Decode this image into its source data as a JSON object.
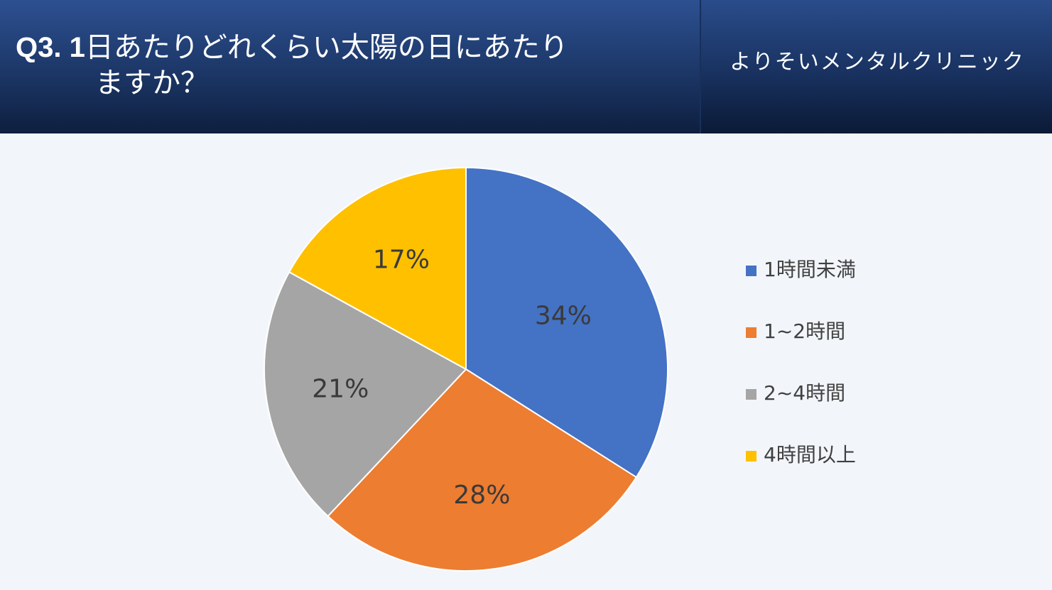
{
  "header": {
    "title_number": "Q3. 1",
    "title_line1": "日あたりどれくらい太陽の日にあたり",
    "title_line2": "ますか？",
    "clinic_name": "よりそいメンタルクリニック"
  },
  "chart_data": {
    "type": "pie",
    "title": "",
    "slices": [
      {
        "label": "1時間未満",
        "value": 34,
        "display": "34%",
        "color": "#4472c4"
      },
      {
        "label": "1~2時間",
        "value": 28,
        "display": "28%",
        "color": "#ed7d31"
      },
      {
        "label": "2~4時間",
        "value": 21,
        "display": "21%",
        "color": "#a5a5a5"
      },
      {
        "label": "4時間以上",
        "value": 17,
        "display": "17%",
        "color": "#ffc000"
      }
    ],
    "start_angle": "12 o'clock",
    "direction": "clockwise",
    "legend_position": "right"
  }
}
